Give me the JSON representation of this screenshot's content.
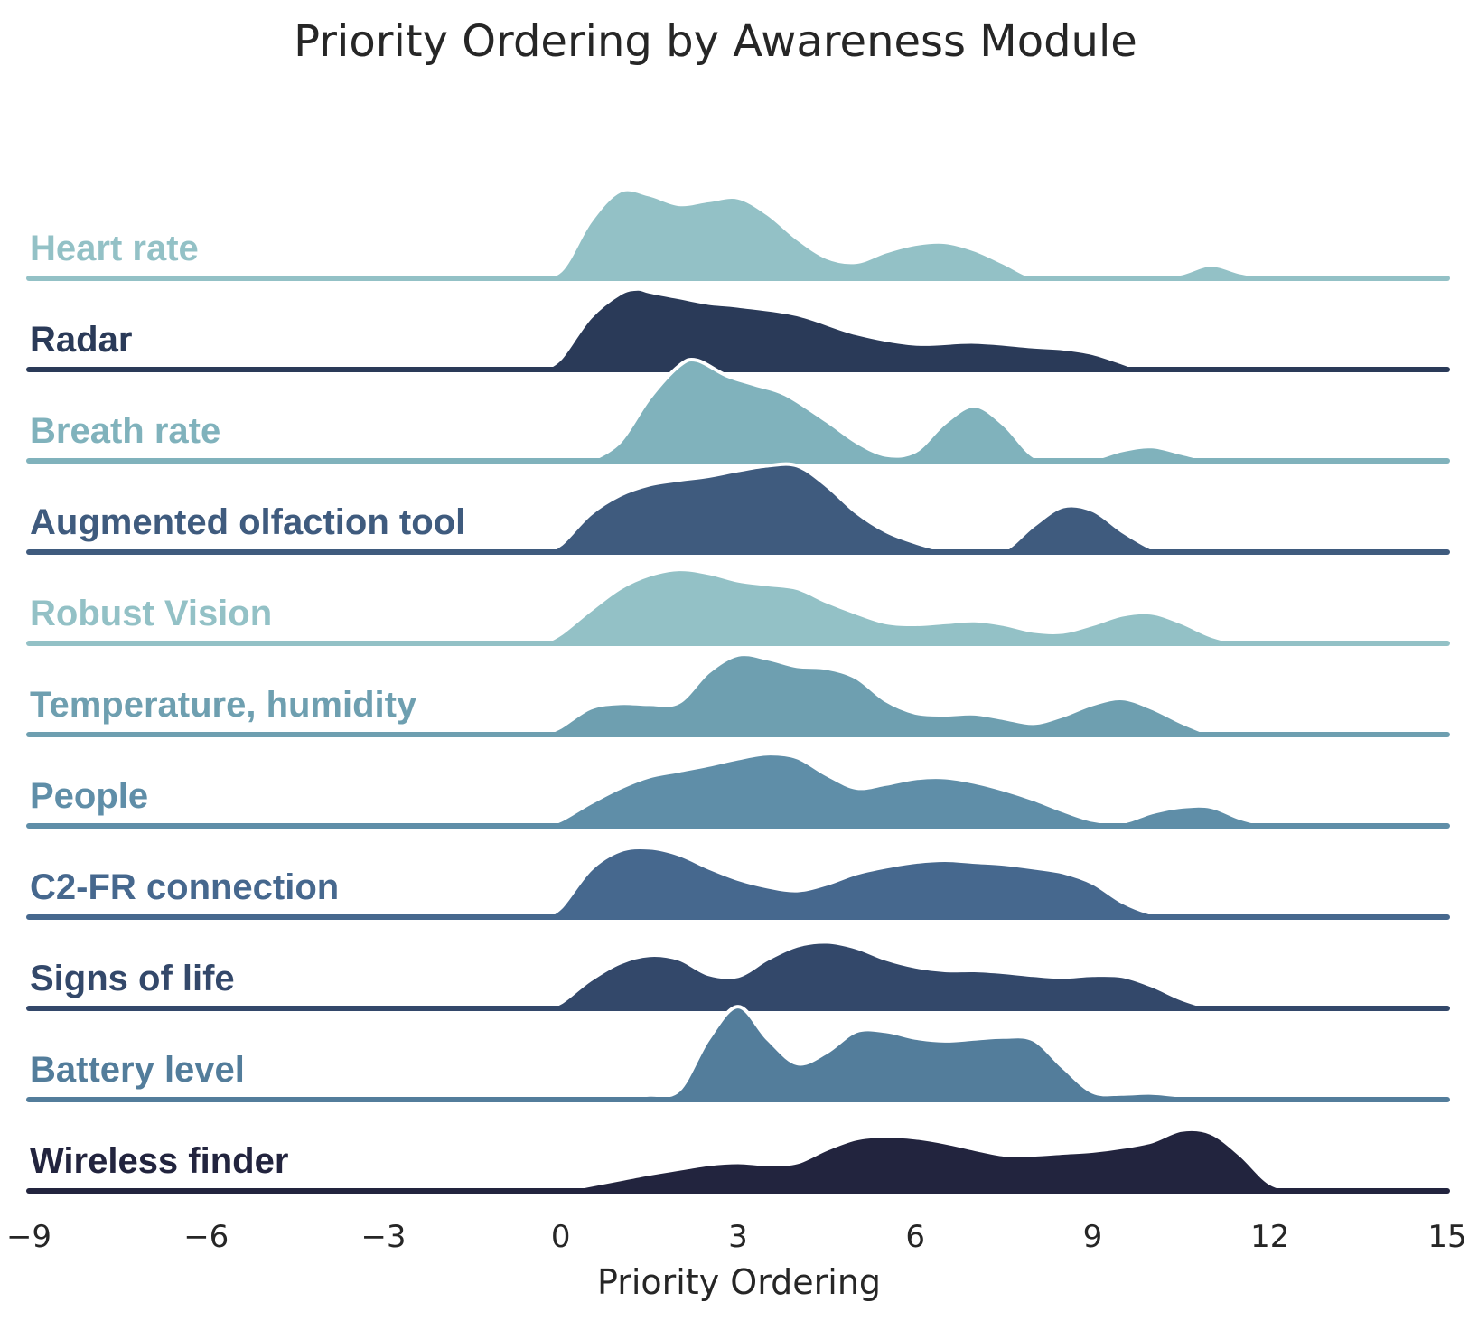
{
  "chart_data": {
    "type": "ridgeline",
    "title": "Priority Ordering by Awareness Module",
    "xlabel": "Priority Ordering",
    "ylabel": "",
    "xlim": [
      -9,
      15
    ],
    "xticks": [
      -9,
      -6,
      -3,
      0,
      3,
      6,
      9,
      12,
      15
    ],
    "xtick_labels": [
      "−9",
      "−6",
      "−3",
      "0",
      "3",
      "6",
      "9",
      "12",
      "15"
    ],
    "grid": false,
    "legend": "none",
    "series": [
      {
        "name": "Heart rate",
        "color": "#93c1c6",
        "x": [
          -0.5,
          0,
          0.5,
          1,
          1.5,
          2,
          2.5,
          3,
          3.5,
          4,
          4.5,
          5,
          5.5,
          6,
          6.5,
          7,
          7.5,
          8,
          8.5,
          9,
          9.5,
          10,
          10.5,
          11,
          11.5,
          12
        ],
        "density": [
          0,
          0.08,
          0.6,
          0.92,
          0.88,
          0.78,
          0.82,
          0.85,
          0.68,
          0.42,
          0.22,
          0.17,
          0.28,
          0.36,
          0.38,
          0.3,
          0.16,
          0.01,
          0,
          0,
          0,
          0.01,
          0.05,
          0.14,
          0.06,
          0
        ]
      },
      {
        "name": "Radar",
        "color": "#2a3a58",
        "x": [
          -0.3,
          0,
          0.5,
          1,
          1.3,
          1.5,
          2,
          2.5,
          3,
          4,
          5,
          6,
          7,
          8,
          8.5,
          9,
          9.5,
          9.8
        ],
        "density": [
          0,
          0.12,
          0.55,
          0.8,
          0.85,
          0.82,
          0.76,
          0.7,
          0.67,
          0.58,
          0.38,
          0.27,
          0.29,
          0.24,
          0.22,
          0.17,
          0.07,
          0
        ]
      },
      {
        "name": "Breath rate",
        "color": "#80b2bc",
        "x": [
          0.5,
          1,
          1.5,
          2,
          2.3,
          2.8,
          3.3,
          3.8,
          4.5,
          5,
          5.5,
          6,
          6.5,
          7,
          7.5,
          8,
          8.5,
          9,
          9.5,
          10,
          10.5,
          11
        ],
        "density": [
          0,
          0.2,
          0.66,
          1.0,
          1.06,
          0.9,
          0.8,
          0.7,
          0.42,
          0.2,
          0.06,
          0.1,
          0.4,
          0.58,
          0.38,
          0.05,
          0,
          0.02,
          0.11,
          0.15,
          0.08,
          0
        ]
      },
      {
        "name": "Augmented olfaction tool",
        "color": "#3f5b7e",
        "x": [
          -0.3,
          0,
          0.5,
          1,
          1.5,
          2,
          2.5,
          3,
          3.5,
          4,
          4.5,
          5,
          5.5,
          6,
          6.5,
          7,
          7.5,
          8,
          8.5,
          9,
          9.5,
          10,
          10.3
        ],
        "density": [
          0,
          0.08,
          0.4,
          0.6,
          0.71,
          0.76,
          0.8,
          0.86,
          0.91,
          0.91,
          0.7,
          0.42,
          0.22,
          0.1,
          0.02,
          0,
          0.02,
          0.28,
          0.48,
          0.44,
          0.22,
          0.04,
          0
        ]
      },
      {
        "name": "Robust Vision",
        "color": "#93c1c6",
        "x": [
          -0.3,
          0,
          0.5,
          1,
          1.5,
          2,
          2.5,
          3,
          3.5,
          4,
          4.5,
          5,
          5.5,
          6,
          6.5,
          7,
          7.5,
          8,
          8.5,
          9,
          9.5,
          10,
          10.5,
          11,
          11.5
        ],
        "density": [
          0,
          0.1,
          0.35,
          0.58,
          0.72,
          0.78,
          0.74,
          0.66,
          0.62,
          0.58,
          0.44,
          0.32,
          0.22,
          0.2,
          0.22,
          0.24,
          0.2,
          0.13,
          0.12,
          0.2,
          0.3,
          0.32,
          0.22,
          0.08,
          0
        ]
      },
      {
        "name": "Temperature, humidity",
        "color": "#6e9fb0",
        "x": [
          -0.3,
          0,
          0.5,
          1,
          1.5,
          2,
          2.5,
          3,
          3.5,
          4,
          4.5,
          5,
          5.5,
          6,
          6.5,
          7,
          7.5,
          8,
          8.5,
          9,
          9.5,
          10,
          10.5,
          11
        ],
        "density": [
          0,
          0.08,
          0.28,
          0.33,
          0.32,
          0.34,
          0.66,
          0.84,
          0.8,
          0.72,
          0.7,
          0.6,
          0.36,
          0.23,
          0.21,
          0.22,
          0.17,
          0.12,
          0.2,
          0.32,
          0.38,
          0.28,
          0.13,
          0
        ]
      },
      {
        "name": "People",
        "color": "#5f8ea8",
        "x": [
          -0.3,
          0,
          0.5,
          1,
          1.5,
          2,
          2.5,
          3,
          3.5,
          4,
          4.5,
          5,
          5.5,
          6,
          6.5,
          7,
          7.5,
          8,
          8.5,
          9,
          9.5,
          10,
          10.5,
          11,
          11.5,
          12
        ],
        "density": [
          0,
          0.06,
          0.24,
          0.4,
          0.52,
          0.58,
          0.64,
          0.71,
          0.76,
          0.72,
          0.54,
          0.4,
          0.44,
          0.5,
          0.51,
          0.46,
          0.38,
          0.28,
          0.16,
          0.06,
          0.04,
          0.14,
          0.2,
          0.2,
          0.08,
          0
        ]
      },
      {
        "name": "C2-FR connection",
        "color": "#46688e",
        "x": [
          -0.3,
          0,
          0.5,
          1,
          1.5,
          2,
          2.5,
          3,
          3.5,
          4,
          4.5,
          5,
          5.5,
          6,
          6.5,
          7,
          7.5,
          8,
          8.5,
          9,
          9.5,
          10,
          10.5,
          11
        ],
        "density": [
          0,
          0.1,
          0.5,
          0.7,
          0.73,
          0.66,
          0.52,
          0.4,
          0.32,
          0.28,
          0.35,
          0.46,
          0.53,
          0.58,
          0.6,
          0.58,
          0.56,
          0.52,
          0.47,
          0.36,
          0.16,
          0.04,
          0.01,
          0
        ]
      },
      {
        "name": "Signs of life",
        "color": "#33486a",
        "x": [
          -0.3,
          0,
          0.5,
          1,
          1.5,
          2,
          2.5,
          3,
          3.5,
          4,
          4.5,
          5,
          5.5,
          6,
          6.5,
          7,
          7.5,
          8,
          8.5,
          9,
          9.5,
          10,
          10.5,
          11
        ],
        "density": [
          0,
          0.06,
          0.3,
          0.48,
          0.56,
          0.52,
          0.36,
          0.34,
          0.52,
          0.66,
          0.7,
          0.64,
          0.52,
          0.44,
          0.4,
          0.4,
          0.38,
          0.35,
          0.33,
          0.35,
          0.34,
          0.24,
          0.1,
          0
        ]
      },
      {
        "name": "Battery level",
        "color": "#537d9b",
        "x": [
          0.5,
          1,
          1.5,
          2,
          2.5,
          3,
          3.5,
          4,
          4.5,
          5,
          5.5,
          6,
          6.5,
          7,
          7.5,
          8,
          8.5,
          9,
          9.5,
          10,
          10.5,
          11
        ],
        "density": [
          0,
          0.04,
          0.05,
          0.1,
          0.64,
          0.98,
          0.64,
          0.38,
          0.5,
          0.72,
          0.72,
          0.65,
          0.62,
          0.64,
          0.66,
          0.63,
          0.34,
          0.08,
          0.06,
          0.07,
          0.04,
          0
        ]
      },
      {
        "name": "Wireless finder",
        "color": "#22243e",
        "x": [
          0,
          0.5,
          1,
          1.5,
          2,
          2.5,
          3,
          3.5,
          4,
          4.5,
          5,
          5.5,
          6,
          6.5,
          7,
          7.5,
          8,
          8.5,
          9,
          9.5,
          10,
          10.5,
          11,
          11.5,
          12,
          12.5
        ],
        "density": [
          0,
          0.06,
          0.12,
          0.18,
          0.23,
          0.28,
          0.3,
          0.28,
          0.3,
          0.44,
          0.55,
          0.58,
          0.56,
          0.51,
          0.44,
          0.38,
          0.38,
          0.4,
          0.42,
          0.46,
          0.52,
          0.64,
          0.61,
          0.38,
          0.08,
          0
        ]
      }
    ]
  }
}
